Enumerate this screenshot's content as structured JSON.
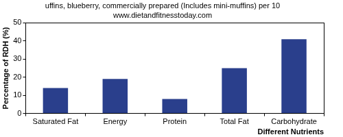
{
  "chart_data": {
    "type": "bar",
    "title": "uffins, blueberry, commercially prepared (Includes mini-muffins) per 10",
    "subtitle": "www.dietandfitnesstoday.com",
    "x_label": "Different Nutrients",
    "y_label": "Percentage of RDH (%)",
    "categories": [
      "Saturated Fat",
      "Energy",
      "Protein",
      "Total Fat",
      "Carbohydrate"
    ],
    "values": [
      14,
      19,
      8,
      25,
      41
    ],
    "color": "#2a3f8c",
    "ylim": [
      0,
      50
    ],
    "yticks": [
      0,
      10,
      20,
      30,
      40,
      50
    ],
    "grid": false
  }
}
